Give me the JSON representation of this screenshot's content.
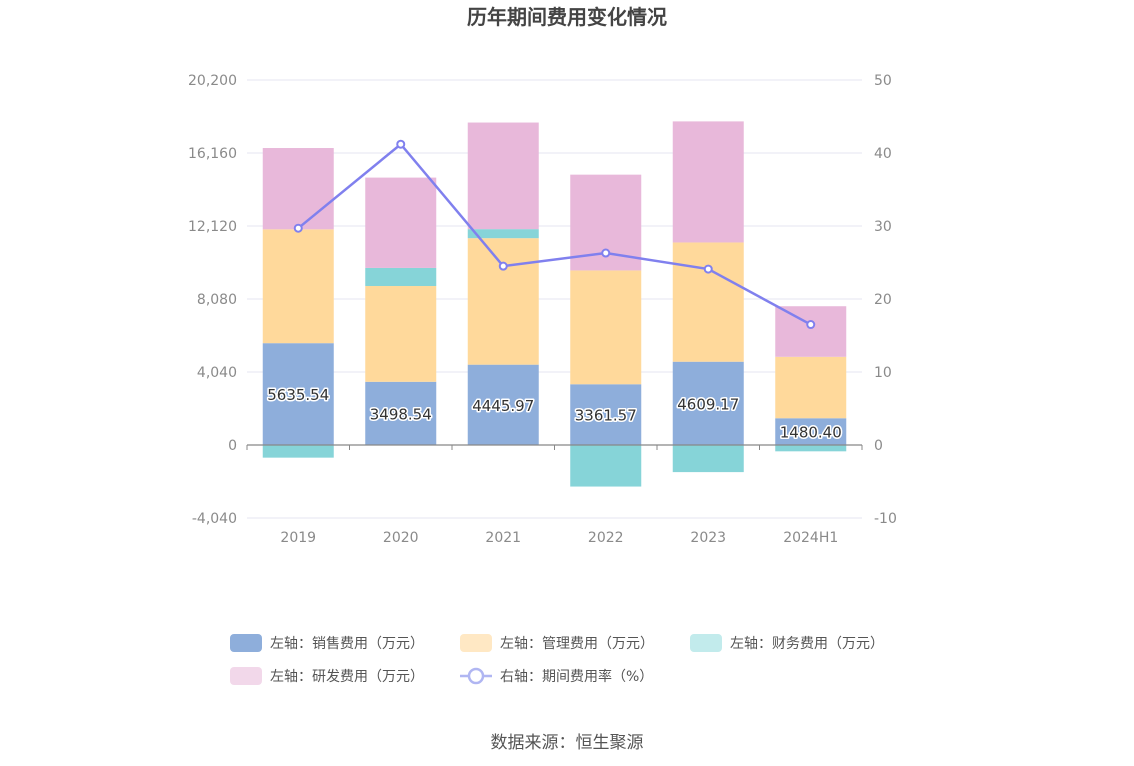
{
  "chart_data": {
    "type": "bar",
    "stacked": true,
    "title": "历年期间费用变化情况",
    "categories": [
      "2019",
      "2020",
      "2021",
      "2022",
      "2023",
      "2024H1"
    ],
    "y_left": {
      "ticks": [
        "20,200",
        "16,160",
        "12,120",
        "8,080",
        "4,040",
        "0",
        "-4,040"
      ],
      "range": [
        -4040,
        20200
      ]
    },
    "y_right": {
      "ticks": [
        "50",
        "40",
        "30",
        "20",
        "10",
        "0",
        "-10"
      ],
      "range": [
        -10,
        50
      ]
    },
    "series": [
      {
        "name": "左轴：销售费用（万元）",
        "axis": "left",
        "color": "#8eaedb",
        "values": [
          5635.54,
          3498.54,
          4445.97,
          3361.57,
          4609.17,
          1480.4
        ],
        "labels": [
          "5635.54",
          "3498.54",
          "4445.97",
          "3361.57",
          "4609.17",
          "1480.40"
        ]
      },
      {
        "name": "左轴：管理费用（万元）",
        "axis": "left",
        "color": "#ffd99b",
        "values": [
          6300,
          5300,
          7000,
          6300,
          6600,
          3400
        ]
      },
      {
        "name": "左轴：财务费用（万元）",
        "axis": "left",
        "color": "#86d4d8",
        "values": [
          -700,
          1000,
          500,
          -2300,
          -1500,
          -350
        ]
      },
      {
        "name": "左轴：研发费用（万元）",
        "axis": "left",
        "color": "#e8b8da",
        "values": [
          4500,
          5000,
          5900,
          5300,
          6700,
          2800
        ]
      },
      {
        "name": "右轴：期间费用率（%）",
        "axis": "right",
        "type": "line",
        "color": "#8080ee",
        "values": [
          29.7,
          41.2,
          24.5,
          26.3,
          24.1,
          16.5
        ]
      }
    ],
    "legend_position": "bottom",
    "grid": true
  },
  "source_text": "数据来源：恒生聚源"
}
